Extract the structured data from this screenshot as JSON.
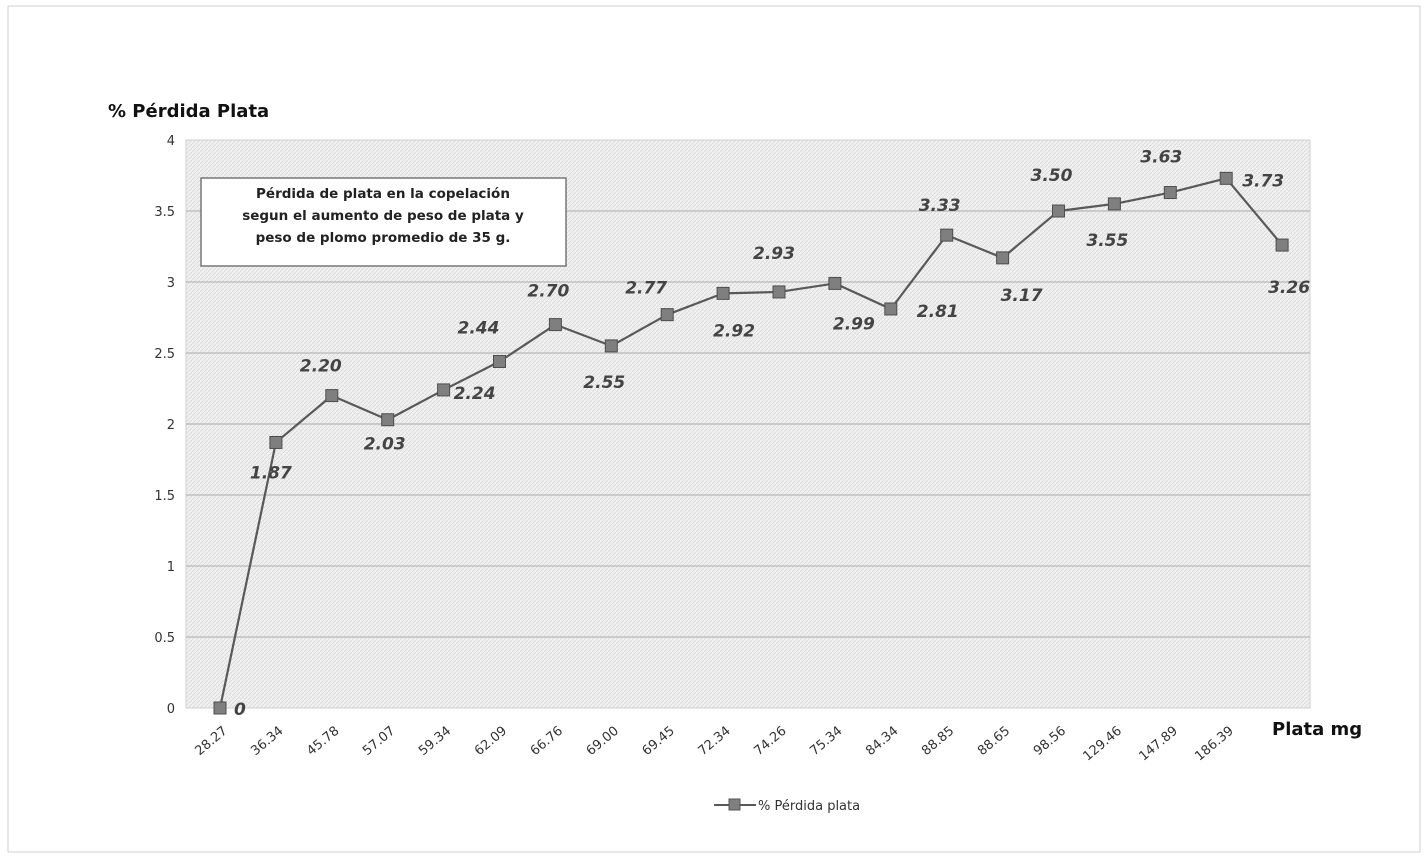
{
  "chart_data": {
    "type": "line",
    "title": "",
    "ylabel": "% Pérdida Plata",
    "xlabel": "Plata mg",
    "ylim": [
      0,
      4
    ],
    "yticks": [
      "0",
      "0.5",
      "1",
      "1.5",
      "2",
      "2.5",
      "3",
      "3.5",
      "4"
    ],
    "ytick_values": [
      0,
      0.5,
      1,
      1.5,
      2,
      2.5,
      3,
      3.5,
      4
    ],
    "categories": [
      "28.27",
      "36.34",
      "45.78",
      "57.07",
      "59.34",
      "62.09",
      "66.76",
      "69.00",
      "69.45",
      "72.34",
      "74.26",
      "75.34",
      "84.34",
      "88.85",
      "88.65",
      "98.56",
      "129.46",
      "147.89",
      "186.39",
      ""
    ],
    "series": [
      {
        "name": "% Pérdida plata",
        "values": [
          0,
          1.87,
          2.2,
          2.03,
          2.24,
          2.44,
          2.7,
          2.55,
          2.77,
          2.92,
          2.93,
          2.99,
          2.81,
          3.33,
          3.17,
          3.5,
          3.55,
          3.63,
          3.73,
          3.26
        ],
        "labels": [
          "0",
          "1.87",
          "2.20",
          "2.03",
          "2.24",
          "2.44",
          "2.70",
          "2.55",
          "2.77",
          "2.92",
          "2.93",
          "2.99",
          "2.81",
          "3.33",
          "3.17",
          "3.50",
          "3.55",
          "3.63",
          "3.73",
          "3.26"
        ],
        "color": "#595959"
      }
    ],
    "annotation": [
      "Pérdida de plata en la copelación",
      "segun el aumento de peso de plata  y",
      "peso de plomo promedio de 35 g."
    ],
    "grid": true,
    "legend": "bottom"
  }
}
